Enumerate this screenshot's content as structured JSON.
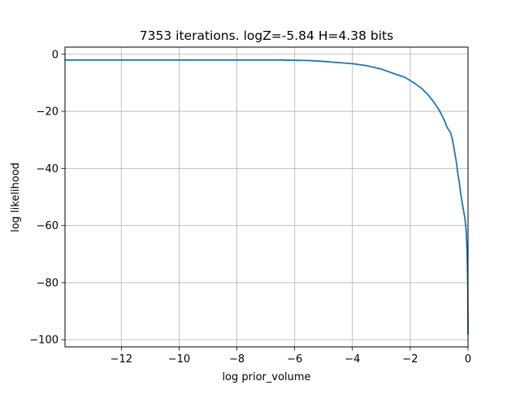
{
  "chart_data": {
    "type": "line",
    "title": "7353 iterations. logZ=-5.84 H=4.38 bits",
    "xlabel": "log prior_volume",
    "ylabel": "log likelihood",
    "xlim": [
      -13.95,
      0
    ],
    "ylim": [
      -102.5,
      2.5
    ],
    "grid": true,
    "x_ticks": [
      -12,
      -10,
      -8,
      -6,
      -4,
      -2,
      0
    ],
    "x_tick_labels": [
      "−12",
      "−10",
      "−8",
      "−6",
      "−4",
      "−2",
      "0"
    ],
    "y_ticks": [
      0,
      -20,
      -40,
      -60,
      -80,
      -100
    ],
    "y_tick_labels": [
      "0",
      "−20",
      "−40",
      "−60",
      "−80",
      "−100"
    ],
    "series": [
      {
        "color": "#1f77b4",
        "x": [
          -13.95,
          -12,
          -10,
          -8,
          -7,
          -6.5,
          -6,
          -5.5,
          -5,
          -4.5,
          -4,
          -3.5,
          -3,
          -2.5,
          -2.2,
          -2,
          -1.8,
          -1.6,
          -1.4,
          -1.2,
          -1.0,
          -0.9,
          -0.8,
          -0.75,
          -0.7,
          -0.6,
          -0.55,
          -0.5,
          -0.45,
          -0.4,
          -0.35,
          -0.3,
          -0.25,
          -0.2,
          -0.15,
          -0.1,
          -0.06,
          -0.03,
          -0.01,
          0
        ],
        "y": [
          -2.0,
          -2.0,
          -2.0,
          -2.0,
          -2.0,
          -2.0,
          -2.1,
          -2.2,
          -2.5,
          -2.9,
          -3.3,
          -4.0,
          -5.2,
          -7.0,
          -8.0,
          -9.2,
          -10.5,
          -12.0,
          -14.0,
          -16.5,
          -19.5,
          -21.5,
          -23.5,
          -25.0,
          -26.0,
          -27.5,
          -29.5,
          -32.0,
          -35.0,
          -38.0,
          -42.0,
          -45.0,
          -49.0,
          -52.0,
          -55.0,
          -58.0,
          -62.0,
          -70.0,
          -80.0,
          -98.0
        ]
      }
    ]
  }
}
